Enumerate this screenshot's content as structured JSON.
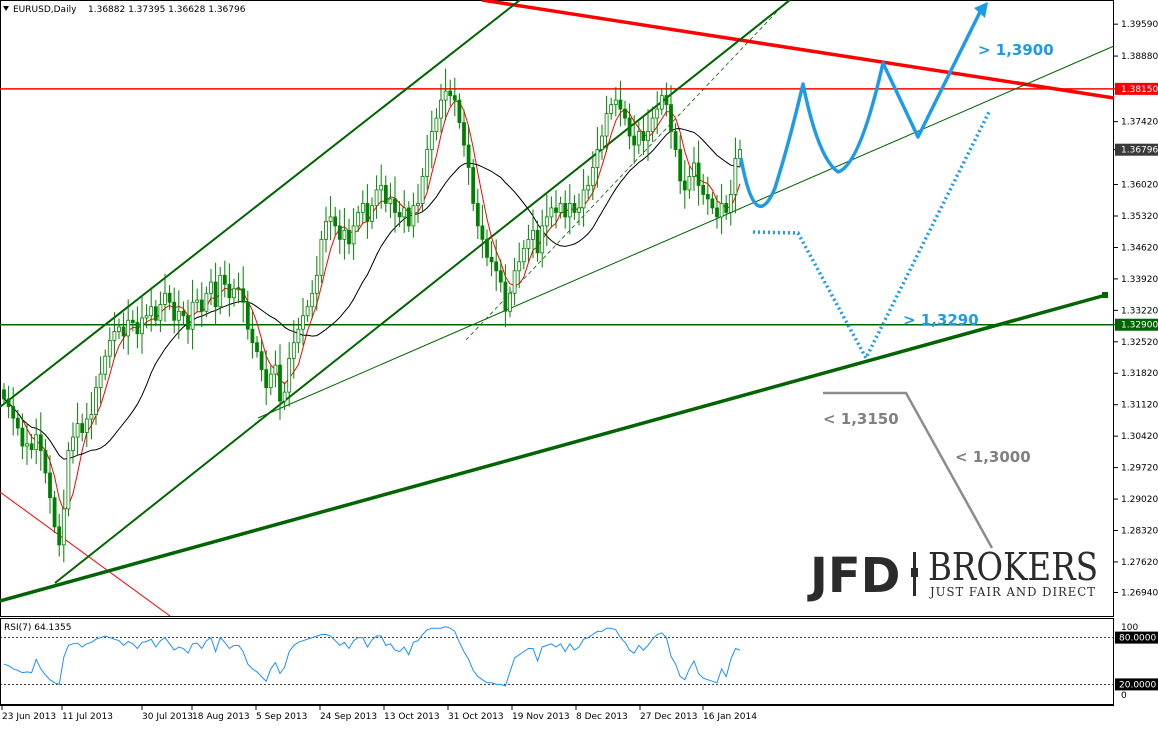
{
  "header": {
    "symbol": "EURUSD,Daily",
    "ohlc": "1.36882 1.37395 1.36628 1.36796"
  },
  "colors": {
    "candle": "#008000",
    "sma_fast": "#ff0000",
    "sma_slow": "#000000",
    "resistance": "#ff0000",
    "support": "#006400",
    "forecast_blue": "#1e9be8",
    "forecast_grey": "#8c8c8c",
    "rsi_line": "#1e90ff"
  },
  "chart_data": [
    {
      "type": "candlestick",
      "title": "EURUSD,Daily",
      "ohlc_last": {
        "open": 1.36882,
        "high": 1.37395,
        "low": 1.36628,
        "close": 1.36796
      },
      "ylim": [
        1.2655,
        1.3995
      ],
      "y_ticks": [
        "1.39590",
        "1.38880",
        "1.38150",
        "1.37420",
        "1.36796",
        "1.36020",
        "1.35320",
        "1.34620",
        "1.33920",
        "1.33220",
        "1.32900",
        "1.32520",
        "1.31820",
        "1.31120",
        "1.30420",
        "1.29720",
        "1.29020",
        "1.28320",
        "1.27620",
        "1.26940"
      ],
      "x_ticks": [
        "23 Jun 2013",
        "11 Jul 2013",
        "30 Jul 2013",
        "18 Aug 2013",
        "5 Sep 2013",
        "24 Sep 2013",
        "13 Oct 2013",
        "31 Oct 2013",
        "19 Nov 2013",
        "8 Dec 2013",
        "27 Dec 2013",
        "16 Jan 2014"
      ],
      "closes": [
        1.3125,
        1.3108,
        1.3082,
        1.306,
        1.302,
        1.3025,
        1.3012,
        1.3045,
        1.301,
        1.296,
        1.2905,
        1.284,
        1.28,
        1.288,
        1.301,
        1.304,
        1.307,
        1.305,
        1.308,
        1.309,
        1.315,
        1.318,
        1.322,
        1.3255,
        1.3275,
        1.3285,
        1.3265,
        1.33,
        1.3295,
        1.327,
        1.3305,
        1.331,
        1.333,
        1.33,
        1.3335,
        1.336,
        1.334,
        1.33,
        1.332,
        1.331,
        1.328,
        1.334,
        1.3345,
        1.332,
        1.336,
        1.3385,
        1.333,
        1.34,
        1.338,
        1.335,
        1.337,
        1.337,
        1.334,
        1.328,
        1.325,
        1.323,
        1.319,
        1.315,
        1.318,
        1.32,
        1.312,
        1.314,
        1.3215,
        1.325,
        1.328,
        1.331,
        1.333,
        1.336,
        1.34,
        1.348,
        1.352,
        1.353,
        1.351,
        1.348,
        1.35,
        1.347,
        1.351,
        1.354,
        1.356,
        1.352,
        1.3555,
        1.359,
        1.36,
        1.356,
        1.357,
        1.354,
        1.353,
        1.355,
        1.351,
        1.3555,
        1.356,
        1.362,
        1.368,
        1.372,
        1.375,
        1.379,
        1.381,
        1.38,
        1.379,
        1.374,
        1.369,
        1.364,
        1.356,
        1.351,
        1.348,
        1.344,
        1.343,
        1.341,
        1.3385,
        1.332,
        1.336,
        1.341,
        1.343,
        1.346,
        1.348,
        1.35,
        1.345,
        1.351,
        1.353,
        1.355,
        1.354,
        1.356,
        1.353,
        1.356,
        1.354,
        1.355,
        1.359,
        1.36,
        1.364,
        1.368,
        1.371,
        1.376,
        1.378,
        1.379,
        1.377,
        1.375,
        1.371,
        1.369,
        1.372,
        1.37,
        1.372,
        1.375,
        1.377,
        1.38,
        1.378,
        1.372,
        1.368,
        1.361,
        1.359,
        1.362,
        1.365,
        1.36,
        1.358,
        1.357,
        1.355,
        1.353,
        1.356,
        1.354,
        1.358,
        1.366,
        1.368
      ]
    },
    {
      "type": "line",
      "title": "RSI(7) 64.1355",
      "ylim": [
        0,
        100
      ],
      "levels": [
        20,
        80
      ],
      "y_ticks": [
        "100",
        "80.0000",
        "20.0000",
        "0"
      ],
      "values": [
        46,
        44,
        40,
        38,
        35,
        36,
        35,
        52,
        40,
        32,
        26,
        22,
        20,
        55,
        70,
        72,
        73,
        68,
        72,
        74,
        78,
        80,
        82,
        80,
        78,
        76,
        70,
        75,
        72,
        66,
        74,
        75,
        78,
        68,
        76,
        80,
        72,
        64,
        68,
        66,
        60,
        72,
        73,
        66,
        76,
        80,
        62,
        80,
        74,
        66,
        70,
        70,
        62,
        46,
        40,
        36,
        30,
        24,
        40,
        48,
        34,
        42,
        62,
        70,
        74,
        76,
        78,
        80,
        82,
        84,
        84,
        82,
        76,
        70,
        74,
        66,
        76,
        80,
        80,
        68,
        77,
        82,
        82,
        70,
        72,
        64,
        62,
        68,
        58,
        74,
        76,
        84,
        90,
        92,
        92,
        92,
        94,
        92,
        88,
        74,
        62,
        52,
        38,
        30,
        26,
        22,
        22,
        20,
        20,
        18,
        36,
        54,
        58,
        62,
        66,
        66,
        50,
        68,
        70,
        72,
        68,
        72,
        62,
        72,
        64,
        68,
        78,
        80,
        84,
        88,
        88,
        92,
        92,
        90,
        80,
        74,
        64,
        60,
        70,
        64,
        70,
        78,
        84,
        86,
        80,
        56,
        46,
        30,
        26,
        40,
        50,
        34,
        28,
        26,
        24,
        22,
        40,
        30,
        52,
        66,
        64
      ]
    }
  ],
  "forecast": {
    "target_up": "> 1,3900",
    "target_support": "> 1,3290",
    "target_down_1": "< 1,3150",
    "target_down_2": "< 1,3000"
  },
  "levels": {
    "resistance_label": "1.38150",
    "support_label": "1.32900",
    "current_label": "1.36796"
  },
  "logo": {
    "main": "JFD",
    "brokers": "BROKERS",
    "tagline": "JUST FAIR AND DIRECT"
  }
}
